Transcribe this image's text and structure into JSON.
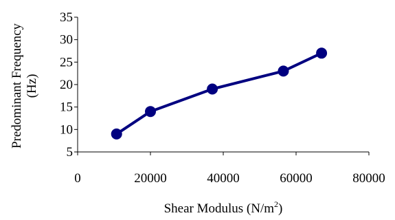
{
  "chart_data": {
    "type": "line",
    "title": "",
    "xlabel": "Shear Modulus (N/m",
    "xlabel_superscript": "2",
    "xlabel_suffix": ")",
    "ylabel_lines": [
      "Predominant Frequency",
      "(Hz)"
    ],
    "xlim": [
      0,
      80000
    ],
    "ylim": [
      5,
      35
    ],
    "x_ticks": [
      0,
      20000,
      40000,
      60000,
      80000
    ],
    "y_ticks": [
      5,
      10,
      15,
      20,
      25,
      30,
      35
    ],
    "grid": false,
    "legend": "none",
    "series": [
      {
        "x": [
          10700,
          20000,
          37000,
          56500,
          67000
        ],
        "y": [
          9,
          14,
          19,
          23,
          27
        ],
        "color": "#000080",
        "marker": "circle"
      }
    ]
  }
}
